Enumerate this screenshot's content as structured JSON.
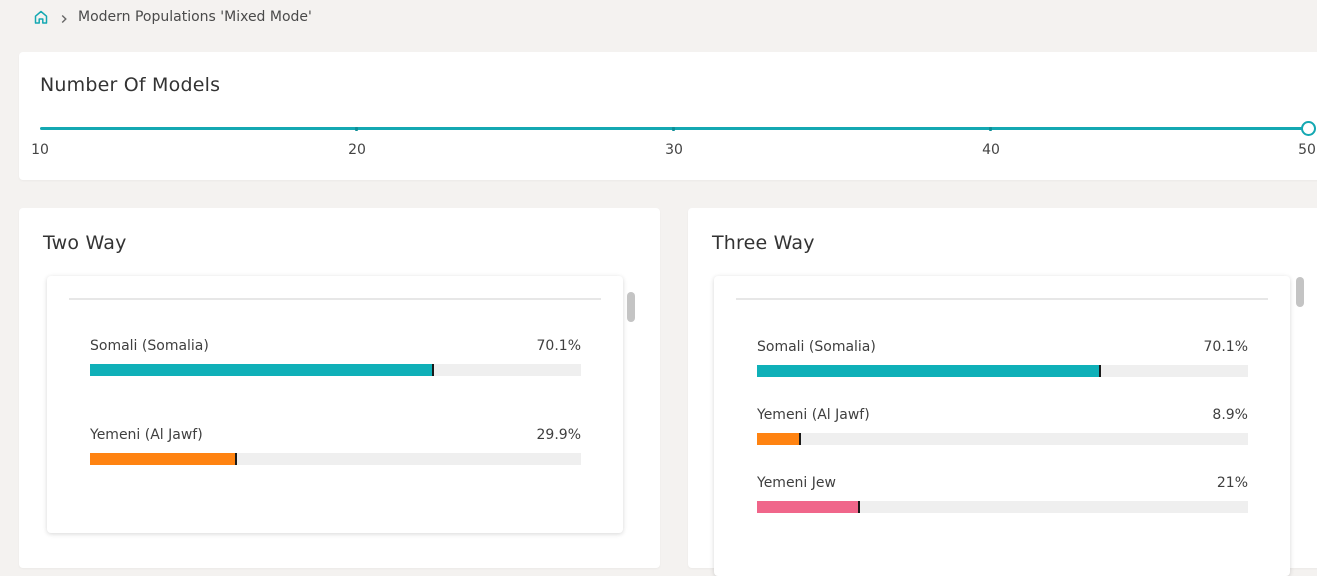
{
  "breadcrumb": {
    "home_icon": "home-icon",
    "separator_icon": "chevron-right-icon",
    "current": "Modern Populations 'Mixed Mode'"
  },
  "models_slider": {
    "title": "Number Of Models",
    "min": 10,
    "max": 50,
    "value": 50,
    "tick_labels": [
      "10",
      "20",
      "30",
      "40",
      "50"
    ],
    "accent_color": "#14a8b2"
  },
  "two_way": {
    "title": "Two Way",
    "rows": [
      {
        "name": "Somali (Somalia)",
        "percent_label": "70.1%",
        "value": 70.1,
        "color": "#0fb0b8"
      },
      {
        "name": "Yemeni (Al Jawf)",
        "percent_label": "29.9%",
        "value": 29.9,
        "color": "#ff8311"
      }
    ]
  },
  "three_way": {
    "title": "Three Way",
    "rows": [
      {
        "name": "Somali (Somalia)",
        "percent_label": "70.1%",
        "value": 70.1,
        "color": "#0fb0b8"
      },
      {
        "name": "Yemeni (Al Jawf)",
        "percent_label": "8.9%",
        "value": 8.9,
        "color": "#ff8311"
      },
      {
        "name": "Yemeni Jew",
        "percent_label": "21%",
        "value": 21,
        "color": "#f0668a"
      }
    ]
  }
}
